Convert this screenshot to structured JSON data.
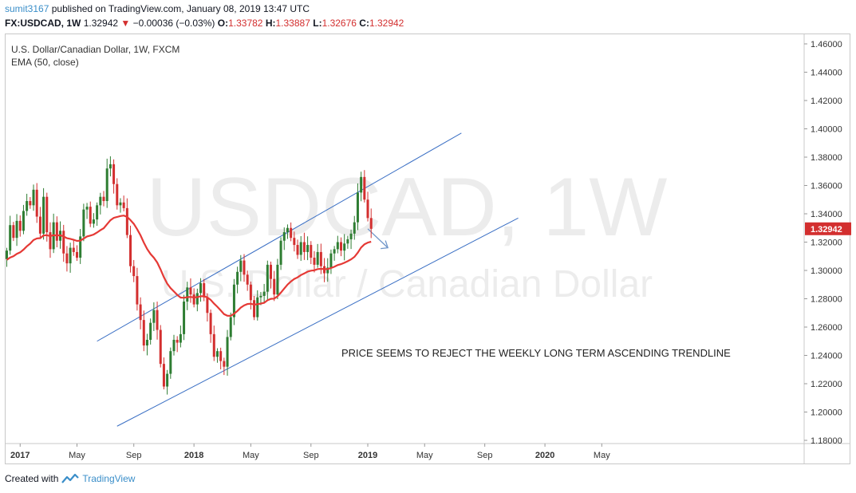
{
  "header": {
    "username": "sumit3167",
    "published_text": "published on TradingView.com, January 08, 2019 13:47 UTC",
    "symbol": "FX:USDCAD, 1W",
    "last": "1.32942",
    "change": "−0.00036 (−0.03%)",
    "o_label": "O:",
    "o": "1.33782",
    "h_label": "H:",
    "h": "1.33887",
    "l_label": "L:",
    "l": "1.32676",
    "c_label": "C:",
    "c": "1.32942"
  },
  "footer": {
    "created_with": "Created with",
    "brand": "TradingView"
  },
  "colors": {
    "up": "#2e7d32",
    "down": "#d32f2f",
    "ema": "#e53935",
    "trend": "#3a6fc4",
    "axis": "#c8c8c8"
  },
  "chart_data": {
    "type": "candlestick",
    "legend_title": "U.S. Dollar/Canadian Dollar, 1W, FXCM",
    "indicator": "EMA (50, close)",
    "watermark_symbol": "USDCAD, 1W",
    "watermark_name": "U.S. Dollar / Canadian Dollar",
    "annotation": "PRICE SEEMS TO REJECT THE WEEKLY LONG TERM ASCENDING TRENDLINE",
    "last_price_label": "1.32942",
    "ylim": [
      1.17,
      1.47
    ],
    "y_ticks": [
      "1.46000",
      "1.44000",
      "1.42000",
      "1.40000",
      "1.38000",
      "1.36000",
      "1.34000",
      "1.32000",
      "1.30000",
      "1.28000",
      "1.26000",
      "1.24000",
      "1.22000",
      "1.20000",
      "1.18000"
    ],
    "x_ticks": [
      {
        "label": "2017",
        "week": 4,
        "bold": true
      },
      {
        "label": "May",
        "week": 21,
        "bold": false
      },
      {
        "label": "Sep",
        "week": 38,
        "bold": false
      },
      {
        "label": "2018",
        "week": 56,
        "bold": true
      },
      {
        "label": "May",
        "week": 73,
        "bold": false
      },
      {
        "label": "Sep",
        "week": 91,
        "bold": false
      },
      {
        "label": "2019",
        "week": 108,
        "bold": true
      },
      {
        "label": "May",
        "week": 125,
        "bold": false
      },
      {
        "label": "Sep",
        "week": 143,
        "bold": false
      },
      {
        "label": "2020",
        "week": 161,
        "bold": true
      },
      {
        "label": "May",
        "week": 178,
        "bold": false
      }
    ],
    "closes": [
      1.314,
      1.332,
      1.323,
      1.335,
      1.328,
      1.342,
      1.349,
      1.346,
      1.357,
      1.338,
      1.326,
      1.352,
      1.327,
      1.315,
      1.334,
      1.321,
      1.328,
      1.312,
      1.305,
      1.316,
      1.313,
      1.309,
      1.324,
      1.343,
      1.345,
      1.333,
      1.336,
      1.346,
      1.352,
      1.349,
      1.372,
      1.375,
      1.361,
      1.346,
      1.348,
      1.344,
      1.325,
      1.303,
      1.296,
      1.276,
      1.265,
      1.247,
      1.251,
      1.263,
      1.272,
      1.258,
      1.234,
      1.218,
      1.227,
      1.243,
      1.251,
      1.249,
      1.255,
      1.278,
      1.288,
      1.283,
      1.276,
      1.284,
      1.291,
      1.281,
      1.27,
      1.255,
      1.239,
      1.243,
      1.236,
      1.232,
      1.253,
      1.267,
      1.29,
      1.299,
      1.307,
      1.297,
      1.29,
      1.279,
      1.267,
      1.281,
      1.282,
      1.285,
      1.304,
      1.294,
      1.283,
      1.304,
      1.321,
      1.327,
      1.33,
      1.323,
      1.318,
      1.311,
      1.32,
      1.313,
      1.318,
      1.309,
      1.304,
      1.313,
      1.303,
      1.298,
      1.302,
      1.312,
      1.315,
      1.32,
      1.314,
      1.319,
      1.322,
      1.326,
      1.334,
      1.355,
      1.366,
      1.35,
      1.337,
      1.3294
    ],
    "opens_first": 1.308,
    "ema_start": 1.307,
    "ema_period": 50,
    "trendlines": [
      {
        "name": "upper",
        "x1": 27,
        "y1": 1.25,
        "x2": 136,
        "y2": 1.397
      },
      {
        "name": "lower",
        "x1": 33,
        "y1": 1.19,
        "x2": 153,
        "y2": 1.337
      }
    ],
    "arrow": {
      "x1": 108,
      "y1": 1.3294,
      "x2": 114,
      "y2": 1.316
    }
  }
}
